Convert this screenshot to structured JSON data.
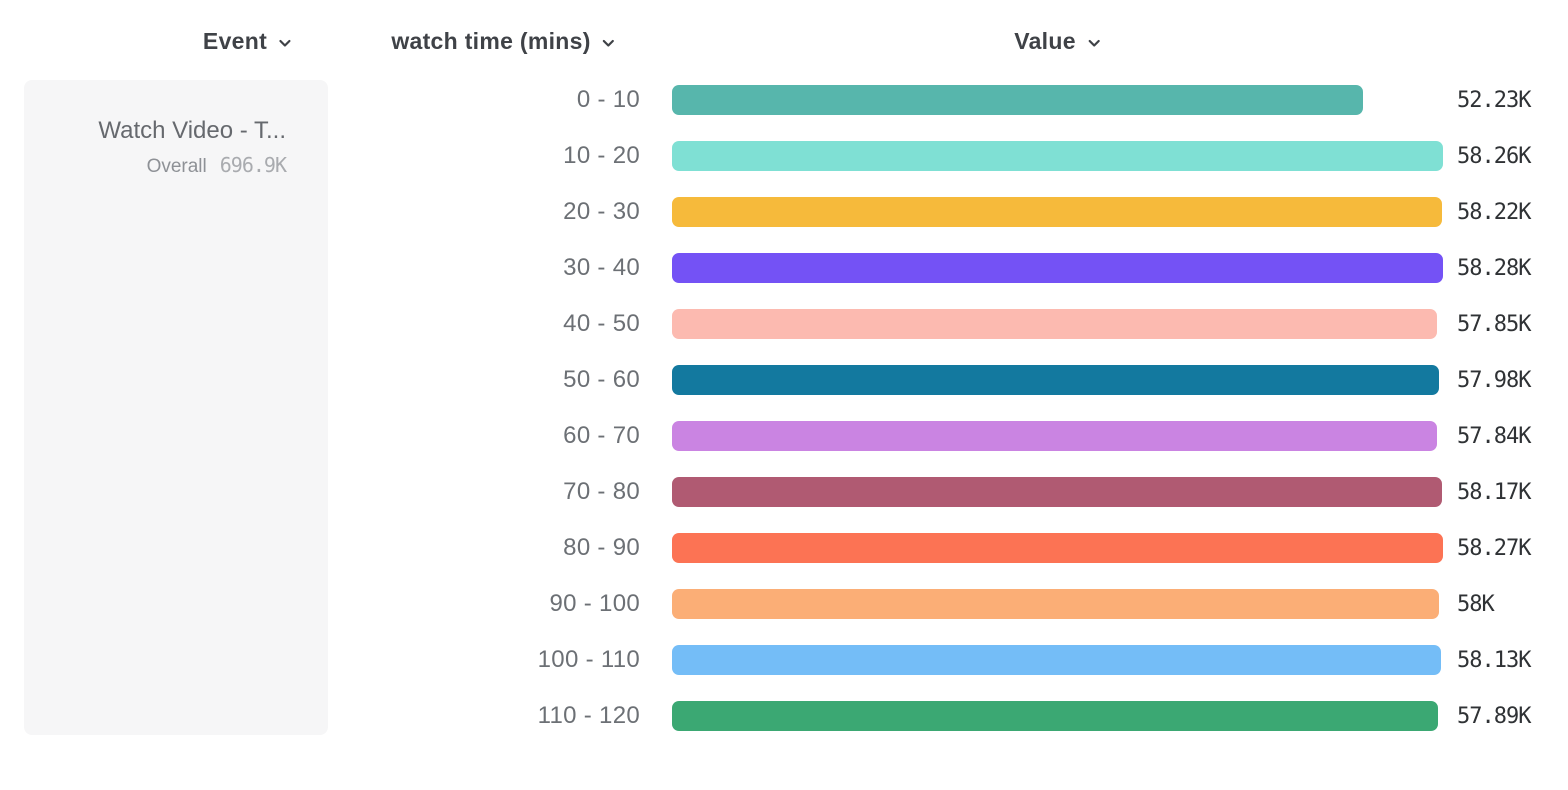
{
  "header": {
    "columns": [
      {
        "id": "event",
        "label": "Event",
        "icon": "chevron-down-icon"
      },
      {
        "id": "breakdown",
        "label": "watch time (mins)",
        "icon": "chevron-down-icon"
      },
      {
        "id": "value",
        "label": "Value",
        "icon": "chevron-down-icon"
      }
    ]
  },
  "event_card": {
    "name": "Watch Video - T...",
    "overall_label": "Overall",
    "overall_value": "696.9K"
  },
  "chart_data": {
    "type": "bar",
    "orientation": "horizontal",
    "title": "",
    "xlabel": "watch time (mins)",
    "ylabel": "Value",
    "grid": false,
    "legend": "none",
    "xlim": [
      0,
      58280
    ],
    "categories": [
      "0 - 10",
      "10 - 20",
      "20 - 30",
      "30 - 40",
      "40 - 50",
      "50 - 60",
      "60 - 70",
      "70 - 80",
      "80 - 90",
      "90 - 100",
      "100 - 110",
      "110 - 120"
    ],
    "values": [
      52230,
      58260,
      58220,
      58280,
      57850,
      57980,
      57840,
      58170,
      58270,
      58000,
      58130,
      57890
    ],
    "value_labels": [
      "52.23K",
      "58.26K",
      "58.22K",
      "58.28K",
      "57.85K",
      "57.98K",
      "57.84K",
      "58.17K",
      "58.27K",
      "58K",
      "58.13K",
      "57.89K"
    ],
    "colors": [
      "#57B6AC",
      "#7FE0D4",
      "#F6BA3B",
      "#7452F5",
      "#FCBAB0",
      "#13799F",
      "#CA84E2",
      "#B05A72",
      "#FC7354",
      "#FBAE76",
      "#74BDF7",
      "#3BA873"
    ]
  }
}
